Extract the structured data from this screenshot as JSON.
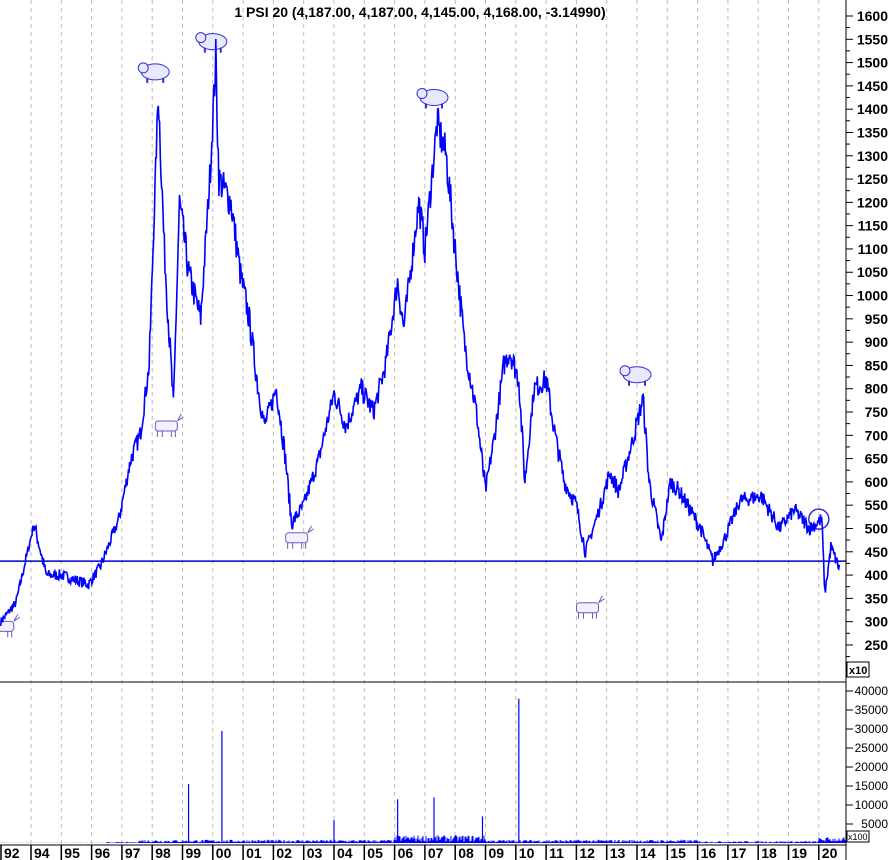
{
  "chart_data": {
    "type": "line",
    "title": "1 PSI 20 (4,187.00, 4,187.00, 4,145.00, 4,168.00, -3.14990)",
    "price_multiplier_label": "x10",
    "volume_multiplier_label": "x100",
    "price_axis": {
      "ylim": [
        250,
        1600
      ],
      "ticks": [
        1600,
        1550,
        1500,
        1450,
        1400,
        1350,
        1300,
        1250,
        1200,
        1150,
        1100,
        1050,
        1000,
        950,
        900,
        850,
        800,
        750,
        700,
        650,
        600,
        550,
        500,
        450,
        400,
        350,
        300,
        250
      ]
    },
    "volume_axis": {
      "ylim": [
        0,
        40000
      ],
      "ticks": [
        40000,
        35000,
        30000,
        25000,
        20000,
        15000,
        10000,
        5000
      ]
    },
    "x_tick_labels": [
      "92",
      "94",
      "95",
      "96",
      "97",
      "98",
      "99",
      "00",
      "01",
      "02",
      "03",
      "04",
      "05",
      "06",
      "07",
      "08",
      "09",
      "10",
      "11",
      "12",
      "13",
      "14",
      "15",
      "16",
      "17",
      "18",
      "19",
      "20"
    ],
    "grid": "vertical dashed",
    "horizontal_line": 430,
    "series": [
      {
        "color": "#0000ff",
        "points": [
          [
            1993.0,
            300
          ],
          [
            1993.5,
            340
          ],
          [
            1994.1,
            510
          ],
          [
            1994.5,
            400
          ],
          [
            1995.0,
            400
          ],
          [
            1995.9,
            380
          ],
          [
            1996.3,
            420
          ],
          [
            1996.9,
            520
          ],
          [
            1997.3,
            650
          ],
          [
            1997.6,
            700
          ],
          [
            1997.9,
            850
          ],
          [
            1998.2,
            1440
          ],
          [
            1998.4,
            1100
          ],
          [
            1998.7,
            760
          ],
          [
            1998.9,
            1200
          ],
          [
            1999.2,
            1050
          ],
          [
            1999.6,
            950
          ],
          [
            1999.9,
            1250
          ],
          [
            2000.1,
            1510
          ],
          [
            2000.2,
            1250
          ],
          [
            2000.6,
            1200
          ],
          [
            2000.9,
            1050
          ],
          [
            2001.2,
            950
          ],
          [
            2001.5,
            800
          ],
          [
            2001.7,
            720
          ],
          [
            2002.1,
            800
          ],
          [
            2002.4,
            650
          ],
          [
            2002.6,
            510
          ],
          [
            2003.0,
            550
          ],
          [
            2003.5,
            650
          ],
          [
            2004.0,
            790
          ],
          [
            2004.4,
            720
          ],
          [
            2004.9,
            800
          ],
          [
            2005.3,
            750
          ],
          [
            2005.7,
            850
          ],
          [
            2006.1,
            1030
          ],
          [
            2006.3,
            930
          ],
          [
            2006.8,
            1200
          ],
          [
            2007.0,
            1100
          ],
          [
            2007.4,
            1370
          ],
          [
            2007.7,
            1300
          ],
          [
            2008.0,
            1100
          ],
          [
            2008.3,
            900
          ],
          [
            2008.7,
            750
          ],
          [
            2009.0,
            580
          ],
          [
            2009.3,
            700
          ],
          [
            2009.6,
            850
          ],
          [
            2009.8,
            880
          ],
          [
            2010.1,
            820
          ],
          [
            2010.3,
            600
          ],
          [
            2010.6,
            800
          ],
          [
            2011.0,
            820
          ],
          [
            2011.3,
            700
          ],
          [
            2011.6,
            600
          ],
          [
            2012.0,
            550
          ],
          [
            2012.3,
            450
          ],
          [
            2012.8,
            550
          ],
          [
            2013.1,
            620
          ],
          [
            2013.4,
            580
          ],
          [
            2013.9,
            700
          ],
          [
            2014.2,
            780
          ],
          [
            2014.4,
            600
          ],
          [
            2014.8,
            470
          ],
          [
            2015.1,
            600
          ],
          [
            2015.4,
            580
          ],
          [
            2016.1,
            500
          ],
          [
            2016.5,
            430
          ],
          [
            2016.9,
            480
          ],
          [
            2017.4,
            560
          ],
          [
            2018.1,
            570
          ],
          [
            2018.7,
            500
          ],
          [
            2019.2,
            540
          ],
          [
            2019.7,
            500
          ],
          [
            2020.1,
            520
          ],
          [
            2020.2,
            360
          ],
          [
            2020.4,
            460
          ],
          [
            2020.7,
            410
          ]
        ]
      }
    ],
    "volume_spikes": [
      [
        1999.2,
        15500
      ],
      [
        2000.3,
        29500
      ],
      [
        2004.0,
        6000
      ],
      [
        2006.1,
        11500
      ],
      [
        2007.3,
        12000
      ],
      [
        2010.1,
        38000
      ],
      [
        2008.9,
        7000
      ]
    ],
    "annotations": {
      "bear_markers": [
        [
          1998.1,
          1480
        ],
        [
          2000.0,
          1545
        ],
        [
          2007.3,
          1425
        ],
        [
          2014.0,
          830
        ]
      ],
      "bull_markers": [
        [
          1993.1,
          290
        ],
        [
          1998.5,
          720
        ],
        [
          2002.8,
          480
        ],
        [
          2012.4,
          330
        ]
      ],
      "circle_marker": [
        2020.0,
        520
      ]
    }
  }
}
